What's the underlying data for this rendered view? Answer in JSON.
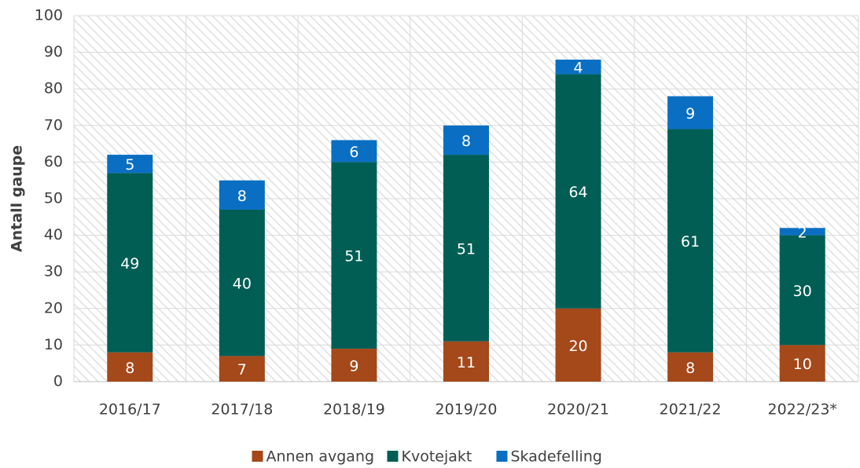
{
  "chart_data": {
    "type": "stacked_bar",
    "y_axis_label": "Antall gaupe",
    "categories": [
      "2016/17",
      "2017/18",
      "2018/19",
      "2019/20",
      "2020/21",
      "2021/22",
      "2022/23*"
    ],
    "series": [
      {
        "name": "Annen avgang",
        "color": "#a5481a",
        "values": [
          8,
          7,
          9,
          11,
          20,
          8,
          10
        ]
      },
      {
        "name": "Kvotejakt",
        "color": "#005e55",
        "values": [
          49,
          40,
          51,
          51,
          64,
          61,
          30
        ]
      },
      {
        "name": "Skadefelling",
        "color": "#0a6fc2",
        "values": [
          5,
          8,
          6,
          8,
          4,
          9,
          2
        ]
      }
    ],
    "ylim": [
      0,
      100
    ],
    "yticks": [
      0,
      10,
      20,
      30,
      40,
      50,
      60,
      70,
      80,
      90,
      100
    ],
    "grid": true,
    "legend": "bottom"
  }
}
